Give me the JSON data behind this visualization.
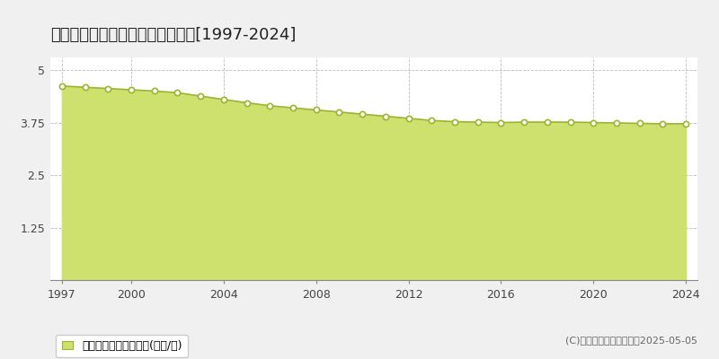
{
  "title": "那珂郡東海村豊岡　基準地価推移[1997-2024]",
  "years": [
    1997,
    1998,
    1999,
    2000,
    2001,
    2002,
    2003,
    2004,
    2005,
    2006,
    2007,
    2008,
    2009,
    2010,
    2011,
    2012,
    2013,
    2014,
    2015,
    2016,
    2017,
    2018,
    2019,
    2020,
    2021,
    2022,
    2023,
    2024
  ],
  "values": [
    4.62,
    4.59,
    4.56,
    4.53,
    4.5,
    4.46,
    4.38,
    4.3,
    4.22,
    4.15,
    4.1,
    4.05,
    4.0,
    3.95,
    3.9,
    3.85,
    3.8,
    3.77,
    3.76,
    3.75,
    3.76,
    3.76,
    3.76,
    3.75,
    3.74,
    3.73,
    3.72,
    3.72
  ],
  "fill_color": "#cee06e",
  "line_color": "#9ab530",
  "marker_facecolor": "#ffffff",
  "marker_edgecolor": "#9ab530",
  "bg_color": "#f0f0f0",
  "plot_bg_color": "#ffffff",
  "grid_color": "#aaaaaa",
  "yticks": [
    0,
    1.25,
    2.5,
    3.75,
    5
  ],
  "ylim": [
    0,
    5.3
  ],
  "xticks": [
    1997,
    2000,
    2004,
    2008,
    2012,
    2016,
    2020,
    2024
  ],
  "legend_label": "基準地価　平均坪単価(万円/坪)",
  "copyright_text": "(C)土地価格ドットコム　2025-05-05",
  "title_fontsize": 13,
  "axis_fontsize": 9,
  "legend_fontsize": 9,
  "copyright_fontsize": 8
}
